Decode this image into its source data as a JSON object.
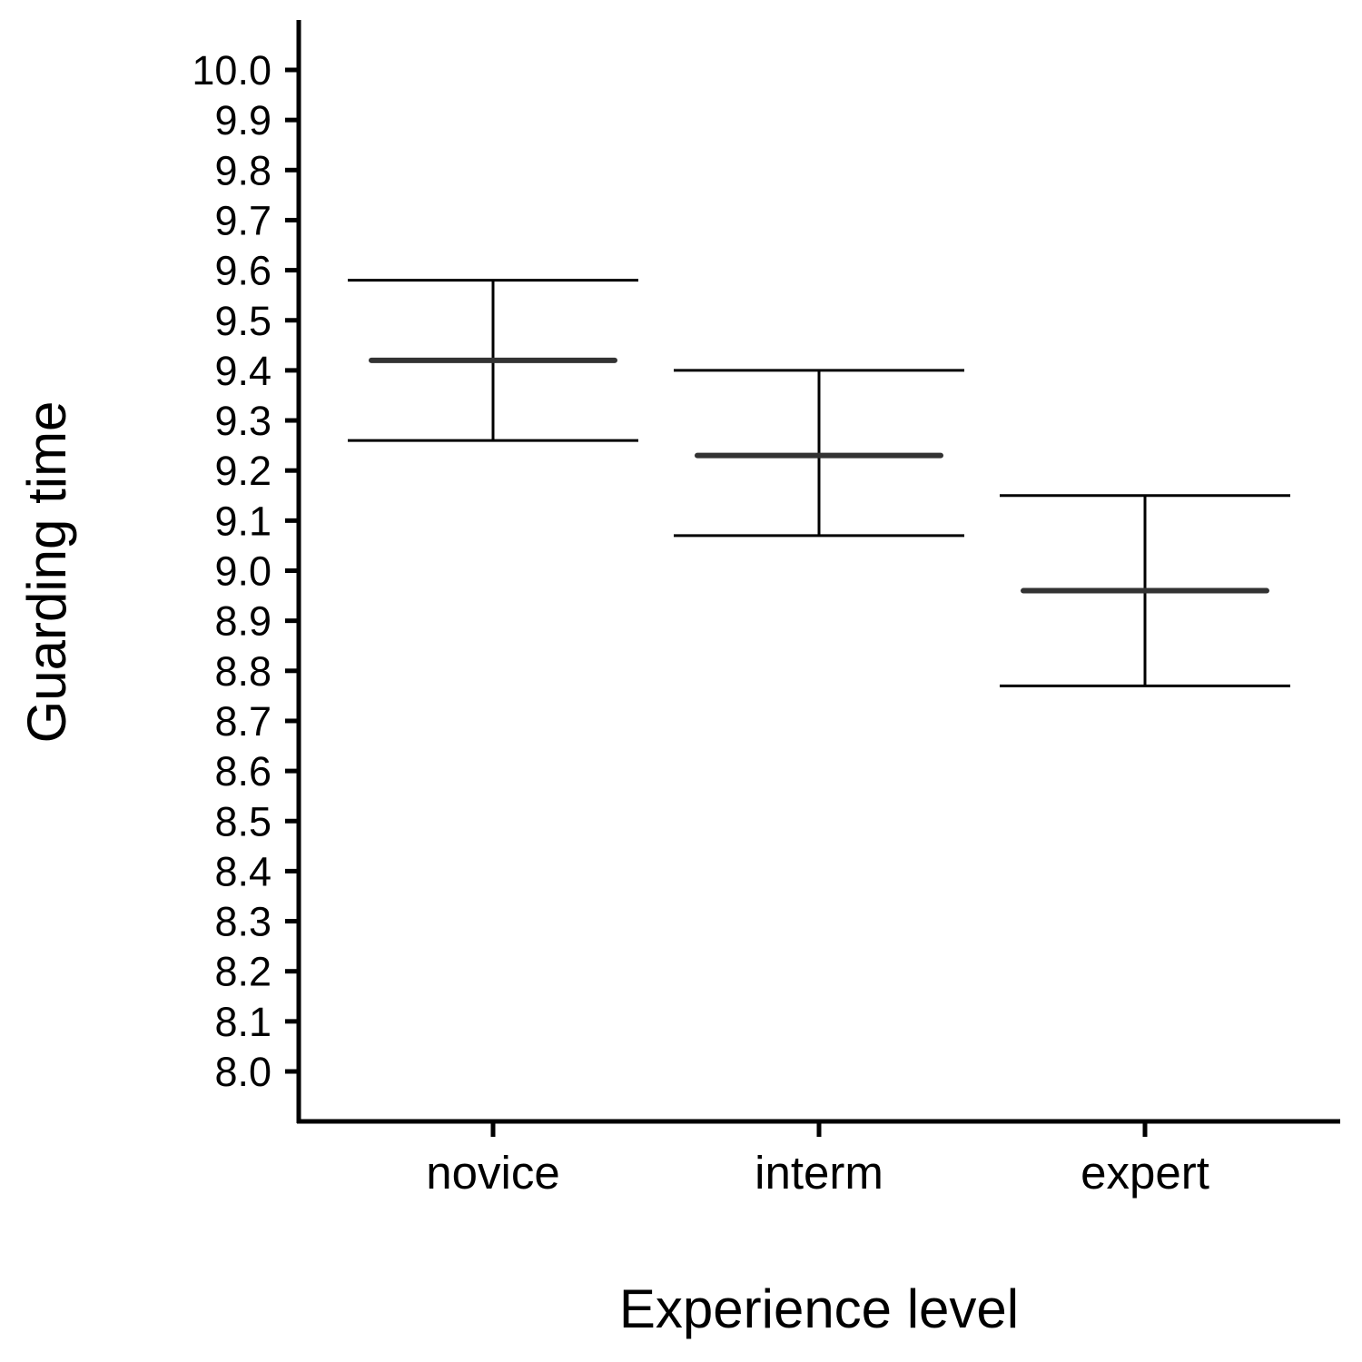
{
  "chart_data": {
    "type": "errorbar",
    "title": "",
    "xlabel": "Experience level",
    "ylabel": "Guarding time",
    "categories": [
      "novice",
      "interm",
      "expert"
    ],
    "series": [
      {
        "mean": [
          9.42,
          9.23,
          8.96
        ],
        "lower": [
          9.26,
          9.07,
          8.77
        ],
        "upper": [
          9.58,
          9.4,
          9.15
        ]
      }
    ],
    "yticks": [
      "8.0",
      "8.1",
      "8.2",
      "8.3",
      "8.4",
      "8.5",
      "8.6",
      "8.7",
      "8.8",
      "8.9",
      "9.0",
      "9.1",
      "9.2",
      "9.3",
      "9.4",
      "9.5",
      "9.6",
      "9.7",
      "9.8",
      "9.9",
      "10.0"
    ],
    "ylim": [
      8.0,
      10.0
    ],
    "grid": false,
    "legend": "none",
    "colors": {
      "axis": "#000000",
      "errorbar": "#000000",
      "mean": "#333333"
    }
  }
}
